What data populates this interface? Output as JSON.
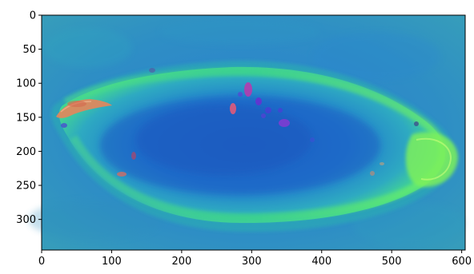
{
  "image": {
    "description_kind": "false-color plotted image array",
    "x_tick_labels": [
      "0",
      "100",
      "200",
      "300",
      "400",
      "500",
      "600"
    ],
    "y_tick_labels": [
      "0",
      "50",
      "100",
      "150",
      "200",
      "250",
      "300"
    ],
    "x_ticks": [
      0,
      100,
      200,
      300,
      400,
      500,
      600
    ],
    "y_ticks": [
      0,
      50,
      100,
      150,
      200,
      250,
      300
    ],
    "x_range": [
      0,
      605
    ],
    "y_range": [
      0,
      345
    ],
    "colors": {
      "background": "#2f86c7",
      "shell_green": "#36d98b",
      "inner_blue": "#1f63c8",
      "rim_green": "#5cf27a",
      "spot_orange": "#e2875c",
      "spot_pink": "#d24d9c",
      "spot_purple": "#7e3cd1"
    }
  }
}
